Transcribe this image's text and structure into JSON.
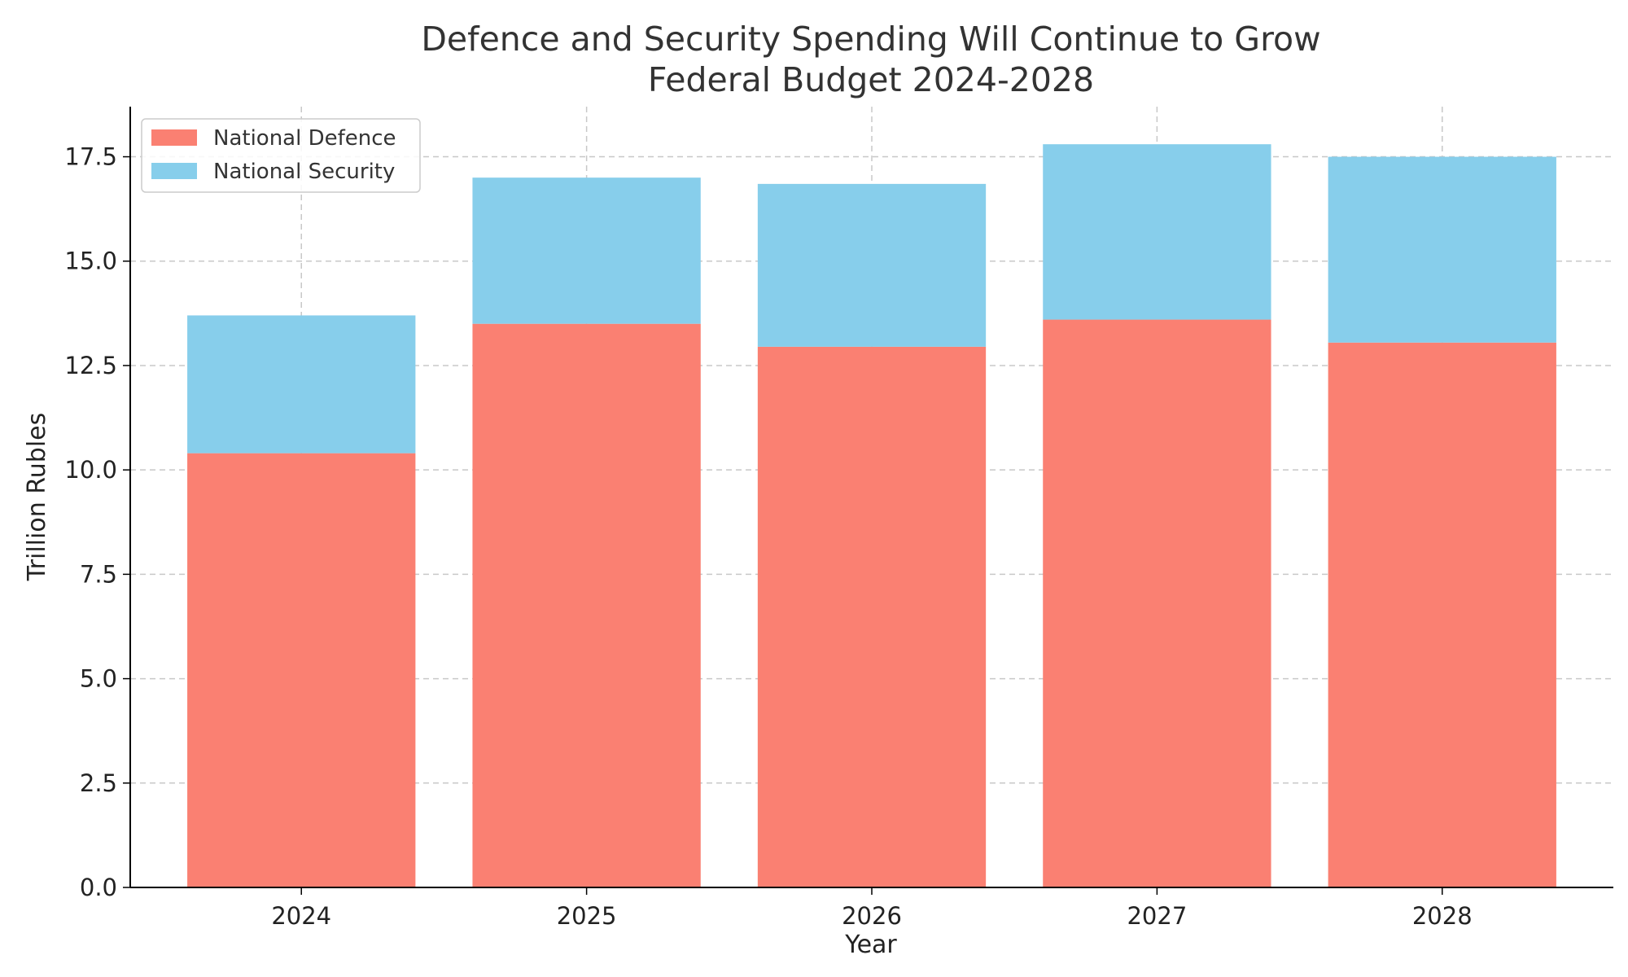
{
  "chart_data": {
    "type": "bar",
    "stacked": true,
    "title": "Defence and Security Spending Will Continue to Grow",
    "subtitle": "Federal Budget 2024-2028",
    "xlabel": "Year",
    "ylabel": "Trillion Rubles",
    "categories": [
      "2024",
      "2025",
      "2026",
      "2027",
      "2028"
    ],
    "series": [
      {
        "name": "National Defence",
        "color": "#fa8072",
        "values": [
          10.4,
          13.5,
          12.95,
          13.6,
          13.05
        ]
      },
      {
        "name": "National Security",
        "color": "#87ceeb",
        "values": [
          3.3,
          3.5,
          3.9,
          4.2,
          4.45
        ]
      }
    ],
    "ylim": [
      0,
      18.7
    ],
    "yticks": [
      "0.0",
      "2.5",
      "5.0",
      "7.5",
      "10.0",
      "12.5",
      "15.0",
      "17.5"
    ],
    "grid": true,
    "legend_position": "top-left"
  }
}
